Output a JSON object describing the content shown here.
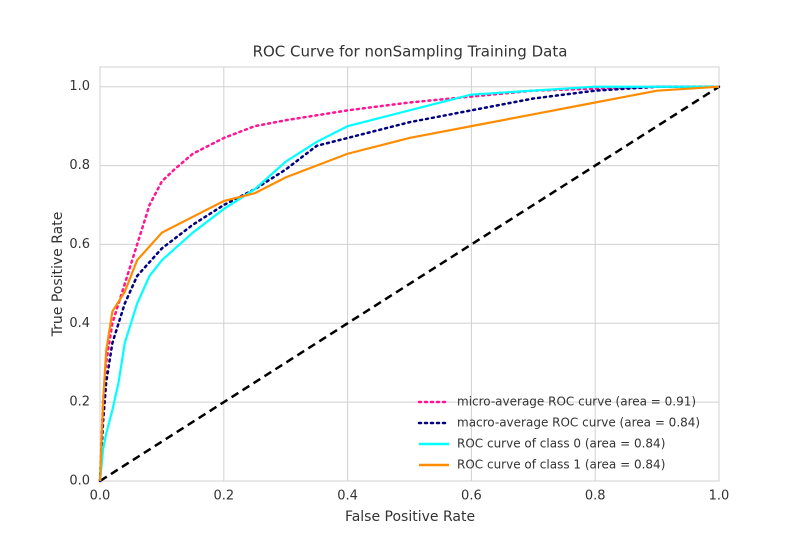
{
  "chart_data": {
    "type": "line",
    "title": "ROC Curve for nonSampling Training Data",
    "xlabel": "False Positive Rate",
    "ylabel": "True Positive Rate",
    "xlim": [
      0,
      1
    ],
    "ylim": [
      0,
      1.05
    ],
    "xticks": [
      {
        "value": 0,
        "label": "0.0"
      },
      {
        "value": 0.2,
        "label": "0.2"
      },
      {
        "value": 0.4,
        "label": "0.4"
      },
      {
        "value": 0.6,
        "label": "0.6"
      },
      {
        "value": 0.8,
        "label": "0.8"
      },
      {
        "value": 1,
        "label": "1.0"
      }
    ],
    "yticks": [
      {
        "value": 0,
        "label": "0.0"
      },
      {
        "value": 0.2,
        "label": "0.2"
      },
      {
        "value": 0.4,
        "label": "0.4"
      },
      {
        "value": 0.6,
        "label": "0.6"
      },
      {
        "value": 0.8,
        "label": "0.8"
      },
      {
        "value": 1,
        "label": "1.0"
      }
    ],
    "grid": true,
    "legend": "lower right",
    "series": [
      {
        "name": "micro-average ROC curve (area = 0.91)",
        "color": "#ff1493",
        "linestyle": "dotted",
        "x": [
          0,
          0.005,
          0.01,
          0.02,
          0.04,
          0.06,
          0.08,
          0.1,
          0.12,
          0.15,
          0.2,
          0.25,
          0.3,
          0.4,
          0.5,
          0.6,
          0.7,
          0.8,
          0.9,
          1
        ],
        "values": [
          0,
          0.2,
          0.3,
          0.4,
          0.5,
          0.6,
          0.7,
          0.76,
          0.79,
          0.83,
          0.87,
          0.9,
          0.915,
          0.94,
          0.96,
          0.975,
          0.99,
          0.995,
          1,
          1
        ]
      },
      {
        "name": "macro-average ROC curve (area = 0.84)",
        "color": "#000080",
        "linestyle": "dotted",
        "x": [
          0,
          0.005,
          0.01,
          0.02,
          0.04,
          0.06,
          0.1,
          0.15,
          0.2,
          0.25,
          0.3,
          0.35,
          0.4,
          0.5,
          0.6,
          0.7,
          0.8,
          0.9,
          1
        ],
        "values": [
          0,
          0.15,
          0.25,
          0.35,
          0.45,
          0.52,
          0.59,
          0.65,
          0.7,
          0.74,
          0.79,
          0.85,
          0.87,
          0.91,
          0.94,
          0.97,
          0.99,
          1,
          1
        ]
      },
      {
        "name": "ROC curve of class 0 (area = 0.84)",
        "color": "#00ffff",
        "linestyle": "solid",
        "x": [
          0,
          0.005,
          0.01,
          0.02,
          0.03,
          0.04,
          0.06,
          0.08,
          0.1,
          0.15,
          0.2,
          0.25,
          0.3,
          0.35,
          0.4,
          0.5,
          0.6,
          0.7,
          0.8,
          1
        ],
        "values": [
          0,
          0.08,
          0.12,
          0.18,
          0.25,
          0.35,
          0.45,
          0.52,
          0.56,
          0.63,
          0.69,
          0.74,
          0.81,
          0.86,
          0.9,
          0.94,
          0.98,
          0.99,
          1,
          1
        ]
      },
      {
        "name": "ROC curve of class 1 (area = 0.84)",
        "color": "#ff8c00",
        "linestyle": "solid",
        "x": [
          0,
          0.005,
          0.01,
          0.02,
          0.04,
          0.06,
          0.1,
          0.15,
          0.2,
          0.25,
          0.3,
          0.4,
          0.5,
          0.6,
          0.7,
          0.8,
          0.9,
          1
        ],
        "values": [
          0,
          0.2,
          0.33,
          0.43,
          0.48,
          0.56,
          0.63,
          0.67,
          0.71,
          0.73,
          0.77,
          0.83,
          0.87,
          0.9,
          0.93,
          0.96,
          0.99,
          1
        ]
      },
      {
        "color": "#000000",
        "linestyle": "dashed",
        "x": [
          0,
          1
        ],
        "values": [
          0,
          1
        ]
      }
    ]
  }
}
